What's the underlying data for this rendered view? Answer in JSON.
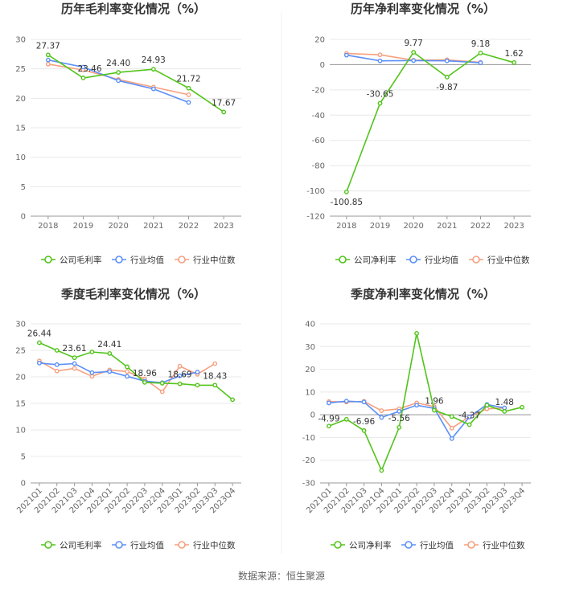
{
  "source": "数据来源：恒生聚源",
  "colors": {
    "company": "#52c41a",
    "avg": "#5b8ff9",
    "median": "#f6a07f",
    "grid": "#e8e8e8",
    "axis": "#999999"
  },
  "chart_data": [
    {
      "type": "line",
      "title": "历年毛利率变化情况（%）",
      "categories": [
        "2018",
        "2019",
        "2020",
        "2021",
        "2022",
        "2023"
      ],
      "ylim": [
        0,
        30
      ],
      "yticks": [
        0,
        5,
        10,
        15,
        20,
        25,
        30
      ],
      "grid": true,
      "legend": "bottom",
      "series": [
        {
          "name": "公司毛利率",
          "values": [
            27.37,
            23.46,
            24.4,
            24.93,
            21.72,
            17.67
          ]
        },
        {
          "name": "行业均值",
          "values": [
            26.5,
            25.3,
            23.0,
            21.6,
            19.3,
            null
          ]
        },
        {
          "name": "行业中位数",
          "values": [
            25.8,
            24.8,
            23.2,
            21.9,
            20.6,
            null
          ]
        }
      ],
      "labels": [
        {
          "index": 0,
          "text": "27.37"
        },
        {
          "index": 1,
          "text": "23.46"
        },
        {
          "index": 2,
          "text": "24.40"
        },
        {
          "index": 3,
          "text": "24.93"
        },
        {
          "index": 4,
          "text": "21.72"
        },
        {
          "index": 5,
          "text": "17.67"
        }
      ]
    },
    {
      "type": "line",
      "title": "历年净利率变化情况（%）",
      "categories": [
        "2018",
        "2019",
        "2020",
        "2021",
        "2022",
        "2023"
      ],
      "ylim": [
        -120,
        20
      ],
      "yticks": [
        -120,
        -100,
        -80,
        -60,
        -40,
        -20,
        0,
        20
      ],
      "grid": true,
      "legend": "bottom",
      "series": [
        {
          "name": "公司净利率",
          "values": [
            -100.85,
            -30.65,
            9.77,
            -9.87,
            9.18,
            1.62
          ]
        },
        {
          "name": "行业均值",
          "values": [
            7.5,
            3.0,
            3.2,
            3.0,
            1.5,
            null
          ]
        },
        {
          "name": "行业中位数",
          "values": [
            8.8,
            7.8,
            3.5,
            3.8,
            1.8,
            null
          ]
        }
      ],
      "labels": [
        {
          "index": 0,
          "text": "-100.85"
        },
        {
          "index": 1,
          "text": "-30.65"
        },
        {
          "index": 2,
          "text": "9.77"
        },
        {
          "index": 3,
          "text": "-9.87"
        },
        {
          "index": 4,
          "text": "9.18"
        },
        {
          "index": 5,
          "text": "1.62"
        }
      ]
    },
    {
      "type": "line",
      "title": "季度毛利率变化情况（%）",
      "categories": [
        "2021Q1",
        "2021Q2",
        "2021Q3",
        "2021Q4",
        "2022Q1",
        "2022Q2",
        "2022Q3",
        "2022Q4",
        "2023Q1",
        "2023Q2",
        "2023Q3",
        "2023Q4"
      ],
      "ylim": [
        0,
        30
      ],
      "yticks": [
        0,
        5,
        10,
        15,
        20,
        25,
        30
      ],
      "grid": true,
      "legend": "bottom",
      "series": [
        {
          "name": "公司毛利率",
          "values": [
            26.44,
            25.0,
            23.61,
            24.7,
            24.41,
            21.9,
            18.96,
            18.8,
            18.69,
            18.43,
            18.43,
            15.7
          ]
        },
        {
          "name": "行业均值",
          "values": [
            22.6,
            22.3,
            22.5,
            20.8,
            21.0,
            20.1,
            19.2,
            18.9,
            20.2,
            20.9,
            null,
            null
          ]
        },
        {
          "name": "行业中位数",
          "values": [
            23.0,
            21.1,
            21.6,
            20.1,
            21.3,
            21.0,
            19.6,
            17.2,
            22.0,
            20.5,
            22.5,
            null
          ]
        }
      ],
      "labels": [
        {
          "index": 0,
          "text": "26.44"
        },
        {
          "index": 2,
          "text": "23.61"
        },
        {
          "index": 4,
          "text": "24.41"
        },
        {
          "index": 6,
          "text": "18.96"
        },
        {
          "index": 8,
          "text": "18.69"
        },
        {
          "index": 10,
          "text": "18.43"
        }
      ]
    },
    {
      "type": "line",
      "title": "季度净利率变化情况（%）",
      "categories": [
        "2021Q1",
        "2021Q2",
        "2021Q3",
        "2021Q4",
        "2022Q1",
        "2022Q2",
        "2022Q3",
        "2022Q4",
        "2023Q1",
        "2023Q2",
        "2023Q3",
        "2023Q4"
      ],
      "ylim": [
        -30,
        40
      ],
      "yticks": [
        -30,
        -20,
        -10,
        0,
        10,
        20,
        30,
        40
      ],
      "grid": true,
      "legend": "bottom",
      "series": [
        {
          "name": "公司净利率",
          "values": [
            -4.99,
            -2.0,
            -6.96,
            -24.5,
            -5.56,
            35.8,
            1.96,
            -0.8,
            -4.37,
            4.2,
            1.48,
            3.3
          ]
        },
        {
          "name": "行业均值",
          "values": [
            5.2,
            6.0,
            5.6,
            -1.2,
            1.5,
            4.2,
            2.8,
            -10.5,
            -1.0,
            4.5,
            3.0,
            null
          ]
        },
        {
          "name": "行业中位数",
          "values": [
            5.8,
            5.6,
            5.9,
            1.8,
            2.6,
            5.2,
            3.6,
            -5.9,
            -0.8,
            2.6,
            3.0,
            null
          ]
        }
      ],
      "labels": [
        {
          "index": 0,
          "text": "-4.99"
        },
        {
          "index": 2,
          "text": "-6.96"
        },
        {
          "index": 4,
          "text": "-5.56"
        },
        {
          "index": 6,
          "text": "1.96"
        },
        {
          "index": 8,
          "text": "-4.37"
        },
        {
          "index": 10,
          "text": "1.48"
        }
      ]
    }
  ]
}
